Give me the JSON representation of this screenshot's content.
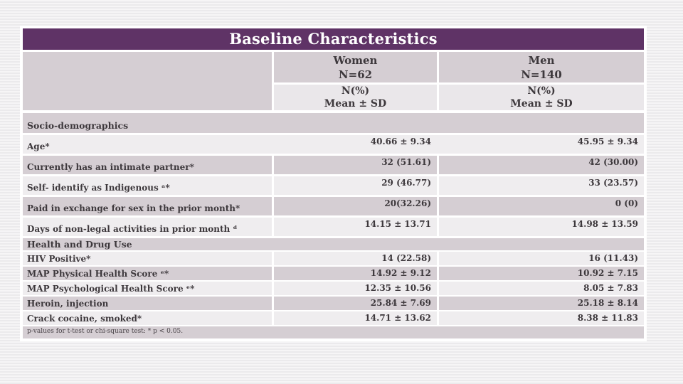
{
  "slide": {
    "title": "Baseline Characteristics",
    "header": {
      "women": {
        "group": "Women",
        "n": "N=62",
        "stat1": "N(%)",
        "stat2": "Mean ± SD"
      },
      "men": {
        "group": "Men",
        "n": "N=140",
        "stat1": "N(%)",
        "stat2": "Mean ± SD"
      }
    },
    "rows": [
      {
        "type": "section",
        "label": "Socio-demographics"
      },
      {
        "label": "Age*",
        "women": "40.66 ± 9.34",
        "men": "45.95 ± 9.34"
      },
      {
        "label": "Currently has an intimate partner*",
        "women": "32 (51.61)",
        "men": "42 (30.00)"
      },
      {
        "label": "Self- identify as Indigenous ᵃ*",
        "women": "29 (46.77)",
        "men": "33 (23.57)"
      },
      {
        "label": "Paid in exchange for sex in the prior month*",
        "women": "20(32.26)",
        "men": "0 (0)"
      },
      {
        "label": "Days of non-legal activities in prior month ᵈ",
        "women": "14.15 ± 13.71",
        "men": "14.98 ± 13.59"
      },
      {
        "type": "section",
        "label": "Health and Drug Use"
      },
      {
        "label": "HIV Positive*",
        "women": "14 (22.58)",
        "men": "16 (11.43)"
      },
      {
        "label": "MAP Physical Health Score ᵉ*",
        "women": "14.92 ± 9.12",
        "men": "10.92 ± 7.15"
      },
      {
        "label": "MAP Psychological Health Score ᵉ*",
        "women": "12.35 ± 10.56",
        "men": "8.05 ± 7.83"
      },
      {
        "label": "Heroin, injection",
        "women": "25.84 ± 7.69",
        "men": "25.18 ± 8.14"
      },
      {
        "label": "Crack cocaine, smoked*",
        "women": "14.71 ± 13.62",
        "men": "8.38 ± 11.83"
      }
    ],
    "footnote": "p-values for t-test or chi-square test: * p < 0.05.",
    "colors": {
      "accent_purple": "#5f3366",
      "row_dark": "#d5ced3",
      "row_light": "#efedef",
      "header_stat_bg": "#eae7ea",
      "text": "#3d383c"
    }
  }
}
